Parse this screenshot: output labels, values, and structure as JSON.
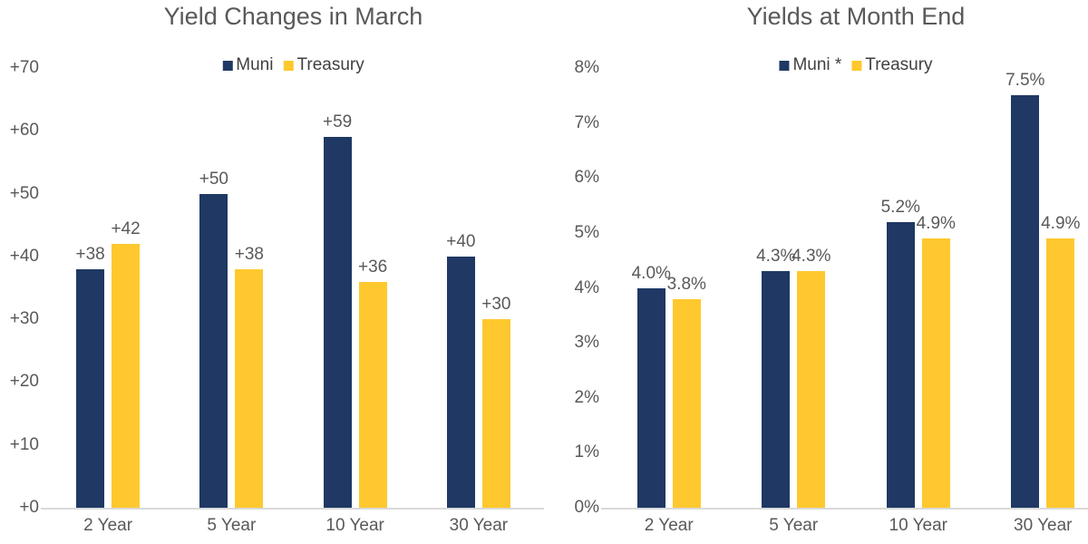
{
  "colors": {
    "muni": "#1f3864",
    "treasury": "#ffc82e",
    "text_gray": "#595959",
    "legend_text": "#404040",
    "axis_line": "#d9d9d9",
    "background": "#ffffff"
  },
  "chart_data": [
    {
      "type": "bar",
      "title": "Yield Changes in March",
      "categories": [
        "2 Year",
        "5 Year",
        "10 Year",
        "30 Year"
      ],
      "series": [
        {
          "name": "Muni",
          "color": "#1f3864",
          "values": [
            38,
            50,
            59,
            40
          ],
          "labels": [
            "+38",
            "+50",
            "+59",
            "+40"
          ]
        },
        {
          "name": "Treasury",
          "color": "#ffc82e",
          "values": [
            42,
            38,
            36,
            30
          ],
          "labels": [
            "+42",
            "+38",
            "+36",
            "+30"
          ]
        }
      ],
      "xlabel": "",
      "ylabel": "",
      "ylim": [
        0,
        70
      ],
      "ytick_step": 10,
      "ytick_labels": [
        "+0",
        "+10",
        "+20",
        "+30",
        "+40",
        "+50",
        "+60",
        "+70"
      ],
      "legend_position": "top-center",
      "grid": false,
      "data_labels": true
    },
    {
      "type": "bar",
      "title": "Yields at Month End",
      "categories": [
        "2 Year",
        "5 Year",
        "10 Year",
        "30 Year"
      ],
      "series": [
        {
          "name": "Muni *",
          "color": "#1f3864",
          "values": [
            4.0,
            4.3,
            5.2,
            7.5
          ],
          "labels": [
            "4.0%",
            "4.3%",
            "5.2%",
            "7.5%"
          ]
        },
        {
          "name": "Treasury",
          "color": "#ffc82e",
          "values": [
            3.8,
            4.3,
            4.9,
            4.9
          ],
          "labels": [
            "3.8%",
            "4.3%",
            "4.9%",
            "4.9%"
          ]
        }
      ],
      "xlabel": "",
      "ylabel": "",
      "ylim": [
        0,
        8
      ],
      "ytick_step": 1,
      "ytick_labels": [
        "0%",
        "1%",
        "2%",
        "3%",
        "4%",
        "5%",
        "6%",
        "7%",
        "8%"
      ],
      "legend_position": "top-center",
      "grid": false,
      "data_labels": true
    }
  ]
}
